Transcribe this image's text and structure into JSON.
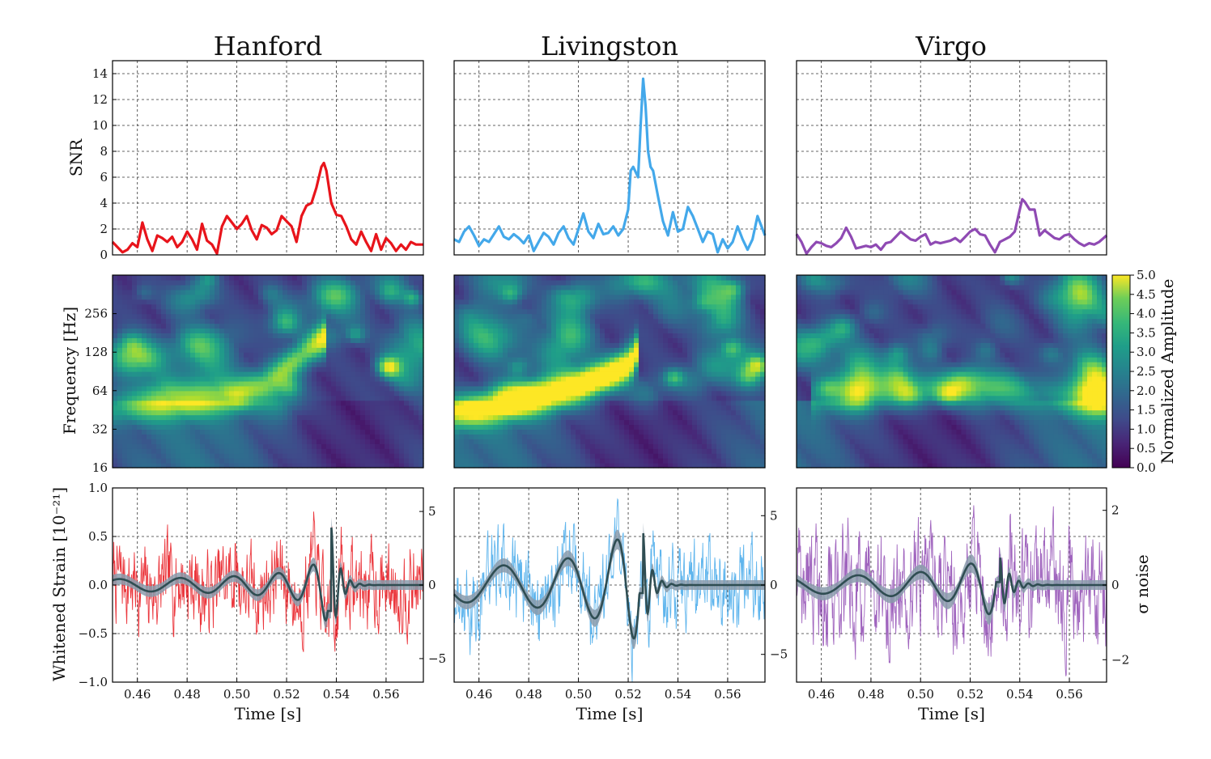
{
  "chart_data": [
    {
      "type": "line",
      "detector": "Hanford",
      "title": "Hanford",
      "color": "#e8141b",
      "snr": {
        "ylabel": "SNR",
        "xlim": [
          0.45,
          0.575
        ],
        "ylim": [
          0,
          15
        ],
        "yticks": [
          0,
          2,
          4,
          6,
          8,
          10,
          12,
          14
        ],
        "x": [
          0.45,
          0.452,
          0.454,
          0.456,
          0.458,
          0.46,
          0.462,
          0.464,
          0.466,
          0.468,
          0.47,
          0.472,
          0.474,
          0.476,
          0.478,
          0.48,
          0.482,
          0.484,
          0.486,
          0.488,
          0.49,
          0.492,
          0.494,
          0.496,
          0.498,
          0.5,
          0.502,
          0.504,
          0.506,
          0.508,
          0.51,
          0.512,
          0.514,
          0.516,
          0.518,
          0.52,
          0.522,
          0.524,
          0.526,
          0.528,
          0.53,
          0.532,
          0.534,
          0.535,
          0.536,
          0.538,
          0.54,
          0.542,
          0.544,
          0.546,
          0.548,
          0.55,
          0.552,
          0.554,
          0.556,
          0.558,
          0.56,
          0.562,
          0.564,
          0.566,
          0.568,
          0.57,
          0.572,
          0.575
        ],
        "y": [
          1.0,
          0.6,
          0.2,
          0.4,
          0.9,
          0.6,
          2.5,
          1.2,
          0.3,
          1.5,
          1.3,
          1.0,
          1.4,
          0.6,
          1.0,
          1.8,
          1.2,
          0.4,
          2.4,
          1.1,
          0.8,
          0.1,
          2.2,
          3.0,
          2.5,
          2.0,
          2.4,
          3.0,
          1.9,
          1.2,
          2.3,
          2.1,
          1.6,
          1.9,
          3.0,
          2.6,
          2.2,
          1.0,
          3.0,
          3.8,
          4.0,
          5.2,
          6.8,
          7.1,
          6.5,
          4.0,
          3.1,
          3.0,
          2.2,
          1.2,
          0.8,
          1.8,
          1.0,
          0.3,
          1.6,
          0.4,
          1.3,
          0.9,
          0.3,
          0.8,
          0.4,
          1.0,
          0.8,
          0.8
        ]
      },
      "spectrogram": {
        "ylabel": "Frequency [Hz]",
        "yticks": [
          16,
          32,
          64,
          128,
          256
        ],
        "ylim_hz": [
          16,
          512
        ],
        "track": {
          "t": [
            0.45,
            0.46,
            0.47,
            0.48,
            0.49,
            0.5,
            0.51,
            0.515,
            0.52,
            0.525,
            0.53,
            0.535
          ],
          "f_hz": [
            48,
            50,
            52,
            54,
            57,
            62,
            72,
            82,
            98,
            118,
            140,
            165
          ],
          "amp": [
            1.8,
            2.4,
            3.0,
            3.2,
            3.0,
            2.9,
            2.8,
            2.9,
            3.0,
            3.1,
            3.3,
            3.6
          ]
        }
      },
      "strain": {
        "ylabel": "Whitened Strain  [10⁻²¹]",
        "xlabel": "Time [s]",
        "xticks": [
          0.46,
          0.48,
          0.5,
          0.52,
          0.54,
          0.56
        ],
        "xticklabels": [
          "0.46",
          "0.48",
          "0.50",
          "0.52",
          "0.54",
          "0.56"
        ],
        "ylim": [
          -1.0,
          1.0
        ],
        "yticks": [
          -1.0,
          -0.5,
          0.0,
          0.5,
          1.0
        ],
        "yticklabels": [
          "−1.0",
          "−0.5",
          "0.0",
          "0.5",
          "1.0"
        ],
        "ylim_noise": [
          -6.6,
          6.6
        ],
        "yticks_noise": [
          -5,
          0,
          5
        ],
        "yticklabels_noise": [
          "−5",
          "0",
          "5"
        ],
        "noise_amp_sigma": 2.5,
        "chirp": {
          "tc": 0.538,
          "f0": 38,
          "k": 0.34,
          "amp0": 0.06,
          "amax": 0.6,
          "ringdown": 0.003
        }
      }
    },
    {
      "type": "line",
      "detector": "Livingston",
      "title": "Livingston",
      "color": "#43a8ea",
      "snr": {
        "ylabel": "",
        "xlim": [
          0.45,
          0.575
        ],
        "ylim": [
          0,
          15
        ],
        "x": [
          0.45,
          0.452,
          0.454,
          0.456,
          0.458,
          0.46,
          0.462,
          0.464,
          0.466,
          0.468,
          0.47,
          0.472,
          0.474,
          0.476,
          0.478,
          0.48,
          0.482,
          0.484,
          0.486,
          0.488,
          0.49,
          0.492,
          0.494,
          0.496,
          0.498,
          0.5,
          0.502,
          0.504,
          0.506,
          0.508,
          0.51,
          0.512,
          0.514,
          0.516,
          0.518,
          0.52,
          0.521,
          0.522,
          0.524,
          0.525,
          0.526,
          0.527,
          0.528,
          0.529,
          0.53,
          0.532,
          0.534,
          0.536,
          0.538,
          0.54,
          0.542,
          0.544,
          0.546,
          0.548,
          0.55,
          0.552,
          0.554,
          0.556,
          0.558,
          0.56,
          0.562,
          0.564,
          0.566,
          0.568,
          0.57,
          0.572,
          0.575
        ],
        "y": [
          1.2,
          1.0,
          1.8,
          2.2,
          1.5,
          0.7,
          1.2,
          1.0,
          1.6,
          2.2,
          1.4,
          1.2,
          1.6,
          1.3,
          0.9,
          1.5,
          0.3,
          1.0,
          1.7,
          1.4,
          0.8,
          1.7,
          2.2,
          1.3,
          0.8,
          2.0,
          3.2,
          1.8,
          1.3,
          2.4,
          1.6,
          1.7,
          2.2,
          1.5,
          2.0,
          3.5,
          6.5,
          6.8,
          6.0,
          10.0,
          13.6,
          11.5,
          8.0,
          6.8,
          6.5,
          4.5,
          2.6,
          1.5,
          3.3,
          1.8,
          2.0,
          3.7,
          3.0,
          2.0,
          1.0,
          1.8,
          1.6,
          0.2,
          1.2,
          0.5,
          1.0,
          2.2,
          1.2,
          0.4,
          1.2,
          3.0,
          1.5
        ]
      },
      "spectrogram": {
        "ylabel": "",
        "ylim_hz": [
          16,
          512
        ],
        "track": {
          "t": [
            0.45,
            0.46,
            0.47,
            0.48,
            0.49,
            0.5,
            0.51,
            0.515,
            0.52,
            0.523,
            0.525
          ],
          "f_hz": [
            44,
            47,
            51,
            56,
            62,
            70,
            82,
            91,
            104,
            118,
            200
          ],
          "amp": [
            3.3,
            4.0,
            4.5,
            4.8,
            5.0,
            5.0,
            5.0,
            5.0,
            5.0,
            4.6,
            3.2
          ]
        }
      },
      "strain": {
        "ylabel": "",
        "xlabel": "Time [s]",
        "xticks": [
          0.46,
          0.48,
          0.5,
          0.52,
          0.54,
          0.56
        ],
        "xticklabels": [
          "0.46",
          "0.48",
          "0.50",
          "0.52",
          "0.54",
          "0.56"
        ],
        "ylim": [
          -1.0,
          1.0
        ],
        "ylim_noise": [
          -7.0,
          7.0
        ],
        "yticks_noise": [
          -5,
          0,
          5
        ],
        "yticklabels_noise": [
          "−5",
          "0",
          "5"
        ],
        "noise_amp_sigma": 2.5,
        "chirp": {
          "tc": 0.526,
          "f0": 30,
          "k": 0.34,
          "amp0": 0.16,
          "amax": 0.55,
          "ringdown": 0.003
        }
      }
    },
    {
      "type": "line",
      "detector": "Virgo",
      "title": "Virgo",
      "color": "#8f4ab3",
      "snr": {
        "ylabel": "",
        "xlim": [
          0.45,
          0.575
        ],
        "ylim": [
          0,
          15
        ],
        "x": [
          0.45,
          0.452,
          0.454,
          0.456,
          0.458,
          0.46,
          0.462,
          0.464,
          0.466,
          0.468,
          0.47,
          0.472,
          0.474,
          0.476,
          0.478,
          0.48,
          0.482,
          0.484,
          0.486,
          0.488,
          0.49,
          0.492,
          0.494,
          0.496,
          0.498,
          0.5,
          0.502,
          0.504,
          0.506,
          0.508,
          0.51,
          0.512,
          0.514,
          0.516,
          0.518,
          0.52,
          0.522,
          0.524,
          0.526,
          0.528,
          0.53,
          0.532,
          0.534,
          0.536,
          0.538,
          0.54,
          0.541,
          0.542,
          0.544,
          0.546,
          0.548,
          0.55,
          0.552,
          0.554,
          0.556,
          0.558,
          0.56,
          0.562,
          0.564,
          0.566,
          0.568,
          0.57,
          0.572,
          0.575
        ],
        "y": [
          1.6,
          1.0,
          0.1,
          0.6,
          1.0,
          0.9,
          0.7,
          0.6,
          0.9,
          1.3,
          2.1,
          1.4,
          0.5,
          0.6,
          0.7,
          0.6,
          0.8,
          0.4,
          0.9,
          1.0,
          1.4,
          1.8,
          1.5,
          1.2,
          1.1,
          1.4,
          1.6,
          0.8,
          1.0,
          0.9,
          1.0,
          1.1,
          1.3,
          1.0,
          1.4,
          1.8,
          2.0,
          1.6,
          1.5,
          0.8,
          0.2,
          1.0,
          1.2,
          1.4,
          1.8,
          3.5,
          4.3,
          4.1,
          3.5,
          3.5,
          1.5,
          1.9,
          1.6,
          1.3,
          1.2,
          1.5,
          1.6,
          1.2,
          0.9,
          0.7,
          0.9,
          0.8,
          1.0,
          1.5
        ]
      },
      "spectrogram": {
        "ylabel": "",
        "colorbar_label": "Normalized Amplitude",
        "colorbar_ticks": [
          "0.0",
          "0.5",
          "1.0",
          "1.5",
          "2.0",
          "2.5",
          "3.0",
          "3.5",
          "4.0",
          "4.5",
          "5.0"
        ],
        "vmin": 0.0,
        "vmax": 5.0,
        "ylim_hz": [
          16,
          512
        ],
        "track": {
          "t": [
            0.455,
            0.465,
            0.475,
            0.485,
            0.495,
            0.505,
            0.515,
            0.525,
            0.535,
            0.545,
            0.555,
            0.565,
            0.575
          ],
          "f_hz": [
            58,
            60,
            62,
            62,
            64,
            66,
            68,
            70,
            66,
            62,
            58,
            56,
            54
          ],
          "amp": [
            1.6,
            1.8,
            2.0,
            2.1,
            2.1,
            2.2,
            2.2,
            2.0,
            1.7,
            1.5,
            1.6,
            1.8,
            2.0
          ]
        }
      },
      "strain": {
        "ylabel": "σ noise",
        "xlabel": "Time [s]",
        "xticks": [
          0.46,
          0.48,
          0.5,
          0.52,
          0.54,
          0.56
        ],
        "xticklabels": [
          "0.46",
          "0.48",
          "0.50",
          "0.52",
          "0.54",
          "0.56"
        ],
        "ylim": [
          -1.0,
          1.0
        ],
        "ylim_noise": [
          -2.6,
          2.6
        ],
        "yticks_noise": [
          -2,
          0,
          2
        ],
        "yticklabels_noise": [
          "−2",
          "0",
          "2"
        ],
        "noise_amp_sigma": 1.3,
        "chirp": {
          "tc": 0.532,
          "f0": 32,
          "k": 0.3,
          "amp0": 0.08,
          "amax": 0.3,
          "ringdown": 0.004
        }
      }
    }
  ]
}
